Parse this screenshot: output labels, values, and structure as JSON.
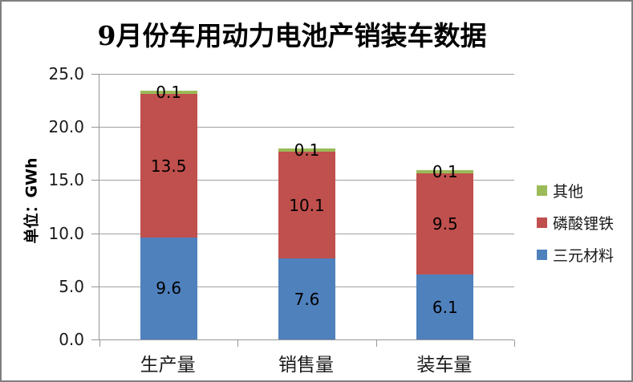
{
  "chart_data": {
    "type": "bar",
    "stacked": true,
    "title": "9月份车用动力电池产销装车数据",
    "xlabel": "",
    "ylabel": "单位：GWh",
    "ylim": [
      0,
      25
    ],
    "y_ticks": [
      "0.0",
      "5.0",
      "10.0",
      "15.0",
      "20.0",
      "25.0"
    ],
    "grid": true,
    "data_labels": true,
    "legend_position": "right",
    "legend_order": [
      "其他",
      "磷酸锂铁",
      "三元材料"
    ],
    "categories": [
      "生产量",
      "销售量",
      "装车量"
    ],
    "series": [
      {
        "name": "三元材料",
        "color": "#4F81BD",
        "values": [
          9.6,
          7.6,
          6.1
        ]
      },
      {
        "name": "磷酸锂铁",
        "color": "#C0504D",
        "values": [
          13.5,
          10.1,
          9.5
        ]
      },
      {
        "name": "其他",
        "color": "#9BBB59",
        "values": [
          0.1,
          0.1,
          0.1
        ]
      }
    ],
    "totals": [
      23.2,
      17.8,
      15.7
    ]
  },
  "colors": {
    "axis": "#969696",
    "gridline": "#a0a0a0",
    "frame_border": "#808080",
    "background": "#ffffff",
    "text": "#000000"
  }
}
